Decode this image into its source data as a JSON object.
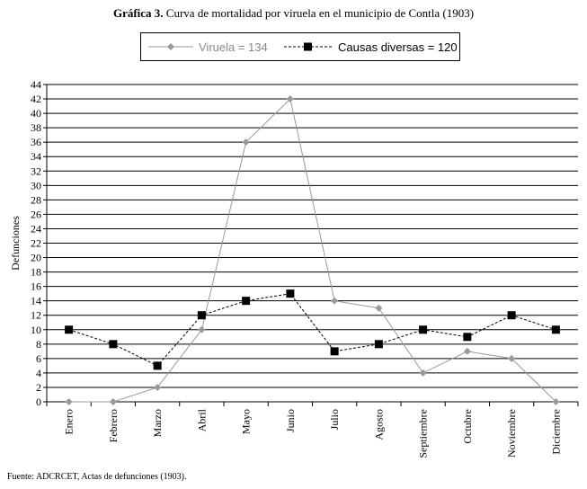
{
  "title": {
    "prefix": "Gráfica 3.",
    "text": " Curva de mortalidad por viruela en el municipio de Contla (1903)"
  },
  "source": "Fuente: ADCRCET, Actas de defunciones (1903).",
  "chart_data": {
    "type": "line",
    "ylabel": "Defunciones",
    "xlabel": "",
    "ylim": [
      0,
      44
    ],
    "yticks": [
      0,
      2,
      4,
      6,
      8,
      10,
      12,
      14,
      16,
      18,
      20,
      22,
      24,
      26,
      28,
      30,
      32,
      34,
      36,
      38,
      40,
      42,
      44
    ],
    "grid": "horizontal",
    "legend_position": "top",
    "categories": [
      "Enero",
      "Febrero",
      "Marzo",
      "Abril",
      "Mayo",
      "Junio",
      "Julio",
      "Agosto",
      "Septiembre",
      "Octubre",
      "Noviembre",
      "Diciembre"
    ],
    "series": [
      {
        "name": "Viruela = 134",
        "values": [
          0,
          0,
          2,
          10,
          36,
          42,
          14,
          13,
          4,
          7,
          6,
          0
        ],
        "color": "#999999",
        "marker": "diamond",
        "line": "solid"
      },
      {
        "name": "Causas diversas = 120",
        "values": [
          10,
          8,
          5,
          12,
          14,
          15,
          7,
          8,
          10,
          9,
          12,
          10
        ],
        "color": "#000000",
        "marker": "square",
        "line": "dashed"
      }
    ]
  }
}
